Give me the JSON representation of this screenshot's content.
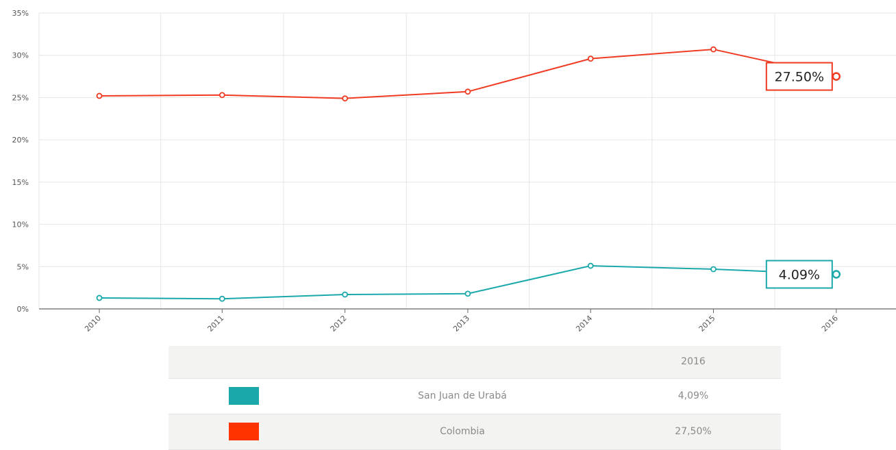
{
  "chart_data": {
    "type": "line",
    "x": [
      "2010",
      "2011",
      "2012",
      "2013",
      "2014",
      "2015",
      "2016"
    ],
    "y_ticks": [
      "0%",
      "5%",
      "10%",
      "15%",
      "20%",
      "25%",
      "30%",
      "35%"
    ],
    "ylim": [
      0,
      35
    ],
    "grid": true,
    "series": [
      {
        "name": "San Juan de Urabá",
        "color": "#1aa8aa",
        "values": [
          1.3,
          1.2,
          1.7,
          1.8,
          5.1,
          4.7,
          4.09
        ],
        "last_label": "4.09%"
      },
      {
        "name": "Colombia",
        "color": "#f03a22",
        "values": [
          25.2,
          25.3,
          24.9,
          25.7,
          29.6,
          30.7,
          27.5
        ],
        "last_label": "27.50%"
      }
    ]
  },
  "summary_table": {
    "header_year": "2016",
    "rows": [
      {
        "name": "San Juan de Urabá",
        "value": "4,09%",
        "color": "#1aa8aa"
      },
      {
        "name": "Colombia",
        "value": "27,50%",
        "color": "#ff3300"
      }
    ]
  }
}
